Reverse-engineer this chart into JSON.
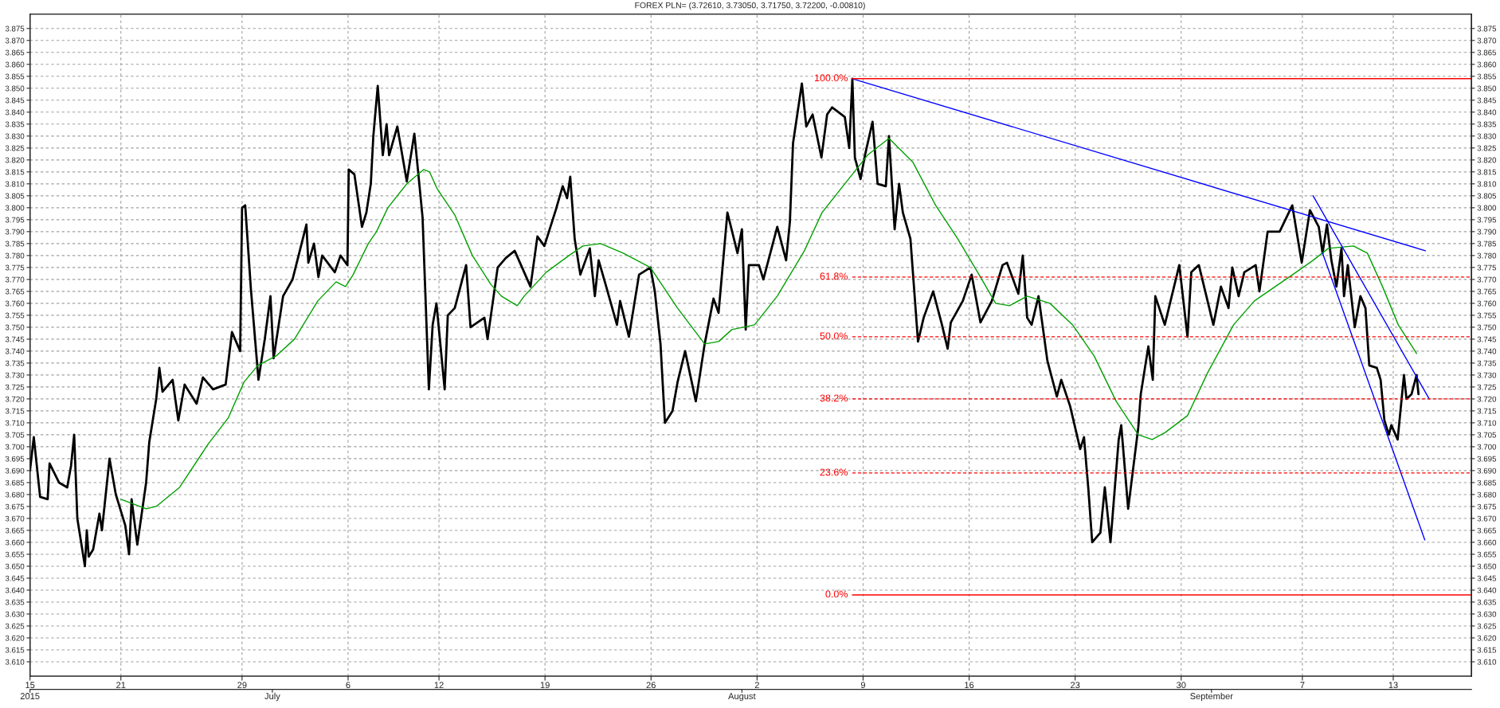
{
  "chart_data": {
    "type": "line",
    "title": "FOREX PLN= (3.72610, 3.73050, 3.71750, 3.72200, -0.00810)",
    "xlim": [
      "2015-06-15T00:00",
      "2015-09-18T04:00"
    ],
    "ylim": [
      3.604,
      3.881
    ],
    "y2lim": [
      3.604,
      3.881
    ],
    "xticks": [
      {
        "value": "2015-06-15",
        "label": "15"
      },
      {
        "value": "2015-06-21",
        "label": "21"
      },
      {
        "value": "2015-06-29",
        "label": "29"
      },
      {
        "value": "2015-07-06",
        "label": "6"
      },
      {
        "value": "2015-07-12",
        "label": "12"
      },
      {
        "value": "2015-07-19",
        "label": "19"
      },
      {
        "value": "2015-07-26",
        "label": "26"
      },
      {
        "value": "2015-08-02",
        "label": "2"
      },
      {
        "value": "2015-08-09",
        "label": "9"
      },
      {
        "value": "2015-08-16",
        "label": "16"
      },
      {
        "value": "2015-08-23",
        "label": "23"
      },
      {
        "value": "2015-08-30",
        "label": "30"
      },
      {
        "value": "2015-09-07",
        "label": "7"
      },
      {
        "value": "2015-09-13",
        "label": "13"
      }
    ],
    "x2lim": [
      "2015-06-15T00:00",
      "2015-09-18T04:00"
    ],
    "x2ticks": [
      {
        "value": "2015-06-15",
        "label": "2015"
      },
      {
        "value": "2015-07-01",
        "label": "July"
      },
      {
        "value": "2015-08-01",
        "label": "August"
      },
      {
        "value": "2015-09-01",
        "label": "September"
      }
    ],
    "yticks": [
      {
        "value": 3.61,
        "label": "3.610"
      },
      3.615,
      {
        "value": 3.62,
        "label": "3.620"
      },
      3.625,
      {
        "value": 3.63,
        "label": "3.630"
      },
      3.635,
      {
        "value": 3.64,
        "label": "3.640"
      },
      3.645,
      {
        "value": 3.65,
        "label": "3.650"
      },
      3.655,
      {
        "value": 3.66,
        "label": "3.660"
      },
      3.665,
      {
        "value": 3.67,
        "label": "3.670"
      },
      3.675,
      {
        "value": 3.68,
        "label": "3.680"
      },
      3.685,
      {
        "value": 3.69,
        "label": "3.690"
      },
      3.695,
      {
        "value": 3.7,
        "label": "3.700"
      },
      3.705,
      {
        "value": 3.71,
        "label": "3.710"
      },
      3.715,
      {
        "value": 3.72,
        "label": "3.720"
      },
      3.725,
      {
        "value": 3.73,
        "label": "3.730"
      },
      3.735,
      {
        "value": 3.74,
        "label": "3.740"
      },
      3.745,
      {
        "value": 3.75,
        "label": "3.750"
      },
      3.755,
      {
        "value": 3.76,
        "label": "3.760"
      },
      3.765,
      {
        "value": 3.77,
        "label": "3.770"
      },
      3.775,
      {
        "value": 3.78,
        "label": "3.780"
      },
      3.785,
      {
        "value": 3.79,
        "label": "3.790"
      },
      3.795,
      {
        "value": 3.8,
        "label": "3.800"
      },
      3.805,
      {
        "value": 3.81,
        "label": "3.810"
      },
      3.815,
      {
        "value": 3.82,
        "label": "3.820"
      },
      3.825,
      {
        "value": 3.83,
        "label": "3.830"
      },
      3.835,
      {
        "value": 3.84,
        "label": "3.840"
      },
      3.845,
      {
        "value": 3.85,
        "label": "3.850"
      },
      3.855,
      {
        "value": 3.86,
        "label": "3.860"
      },
      3.865,
      {
        "value": 3.87,
        "label": "3.870"
      },
      3.875
    ],
    "y2ticks": [
      {
        "value": 3.61,
        "label": "3.610"
      },
      3.615,
      {
        "value": 3.62,
        "label": "3.620"
      },
      3.625,
      {
        "value": 3.63,
        "label": "3.630"
      },
      3.635,
      {
        "value": 3.64,
        "label": "3.640"
      },
      3.645,
      {
        "value": 3.65,
        "label": "3.650"
      },
      3.655,
      {
        "value": 3.66,
        "label": "3.660"
      },
      3.665,
      {
        "value": 3.67,
        "label": "3.670"
      },
      3.675,
      {
        "value": 3.68,
        "label": "3.680"
      },
      3.685,
      {
        "value": 3.69,
        "label": "3.690"
      },
      3.695,
      {
        "value": 3.7,
        "label": "3.700"
      },
      3.705,
      {
        "value": 3.71,
        "label": "3.710"
      },
      3.715,
      {
        "value": 3.72,
        "label": "3.720"
      },
      3.725,
      {
        "value": 3.73,
        "label": "3.730"
      },
      3.735,
      {
        "value": 3.74,
        "label": "3.740"
      },
      3.745,
      {
        "value": 3.75,
        "label": "3.750"
      },
      3.755,
      {
        "value": 3.76,
        "label": "3.760"
      },
      3.765,
      {
        "value": 3.77,
        "label": "3.770"
      },
      3.775,
      {
        "value": 3.78,
        "label": "3.780"
      },
      3.785,
      {
        "value": 3.79,
        "label": "3.790"
      },
      3.795,
      {
        "value": 3.8,
        "label": "3.800"
      },
      3.805,
      {
        "value": 3.81,
        "label": "3.810"
      },
      3.815,
      {
        "value": 3.82,
        "label": "3.820"
      },
      3.825,
      {
        "value": 3.83,
        "label": "3.830"
      },
      3.835,
      {
        "value": 3.84,
        "label": "3.840"
      },
      3.845,
      {
        "value": 3.85,
        "label": "3.850"
      },
      3.855,
      {
        "value": 3.86,
        "label": "3.860"
      },
      3.865,
      {
        "value": 3.87,
        "label": "3.870"
      },
      3.875
    ],
    "grid": true,
    "marker": "none",
    "series": [
      {
        "color": "#000000",
        "line_style": "solid",
        "x": [
          "2015-06-15T00:00",
          "2015-06-15T06:00",
          "2015-06-15T16:00",
          "2015-06-16T04:00",
          "2015-06-16T07:00",
          "2015-06-16T22:00",
          "2015-06-17T11:00",
          "2015-06-17T17:00",
          "2015-06-17T22:00",
          "2015-06-18T03:00",
          "2015-06-18T15:00",
          "2015-06-18T18:00",
          "2015-06-18T21:00",
          "2015-06-19T04:00",
          "2015-06-19T14:00",
          "2015-06-19T18:00",
          "2015-06-20T06:00",
          "2015-06-20T16:00",
          "2015-06-21T07:00",
          "2015-06-21T13:00",
          "2015-06-21T17:00",
          "2015-06-22T02:00",
          "2015-06-22T16:00",
          "2015-06-22T21:00",
          "2015-06-23T08:00",
          "2015-06-23T13:00",
          "2015-06-23T18:00",
          "2015-06-24T10:00",
          "2015-06-24T19:00",
          "2015-06-25T05:00",
          "2015-06-26T00:00",
          "2015-06-26T10:00",
          "2015-06-27T02:00",
          "2015-06-27T22:00",
          "2015-06-28T08:00",
          "2015-06-28T21:00",
          "2015-06-29T00:00",
          "2015-06-29T05:00",
          "2015-06-29T14:00",
          "2015-06-30T02:00",
          "2015-06-30T12:00",
          "2015-06-30T21:00",
          "2015-07-01T02:00",
          "2015-07-01T17:00",
          "2015-07-02T08:00",
          "2015-07-03T06:00",
          "2015-07-03T09:00",
          "2015-07-03T18:00",
          "2015-07-04T01:00",
          "2015-07-04T07:00",
          "2015-07-05T03:00",
          "2015-07-05T12:00",
          "2015-07-05T23:00",
          "2015-07-06T01:00",
          "2015-07-06T10:00",
          "2015-07-06T22:00",
          "2015-07-07T05:00",
          "2015-07-07T12:00",
          "2015-07-07T16:00",
          "2015-07-07T23:00",
          "2015-07-08T07:00",
          "2015-07-08T13:00",
          "2015-07-08T17:00",
          "2015-07-09T06:00",
          "2015-07-09T21:00",
          "2015-07-10T09:00",
          "2015-07-10T15:00",
          "2015-07-10T22:00",
          "2015-07-11T08:00",
          "2015-07-11T14:00",
          "2015-07-11T20:00",
          "2015-07-12T09:00",
          "2015-07-12T14:00",
          "2015-07-13T01:00",
          "2015-07-13T19:00",
          "2015-07-14T02:00",
          "2015-07-15T00:00",
          "2015-07-15T05:00",
          "2015-07-15T21:00",
          "2015-07-16T10:00",
          "2015-07-17T00:00",
          "2015-07-18T01:00",
          "2015-07-18T12:00",
          "2015-07-18T23:00",
          "2015-07-19T17:00",
          "2015-07-20T04:00",
          "2015-07-20T11:00",
          "2015-07-20T16:00",
          "2015-07-20T23:00",
          "2015-07-21T08:00",
          "2015-07-21T23:00",
          "2015-07-22T07:00",
          "2015-07-22T13:00",
          "2015-07-23T01:00",
          "2015-07-23T18:00",
          "2015-07-23T23:00",
          "2015-07-24T13:00",
          "2015-07-25T05:00",
          "2015-07-25T23:00",
          "2015-07-26T06:00",
          "2015-07-26T15:00",
          "2015-07-26T22:00",
          "2015-07-27T10:00",
          "2015-07-27T18:00",
          "2015-07-28T06:00",
          "2015-07-28T23:00",
          "2015-07-29T13:00",
          "2015-07-30T03:00",
          "2015-07-30T11:00",
          "2015-07-31T01:00",
          "2015-07-31T17:00",
          "2015-08-01T00:00",
          "2015-08-01T06:00",
          "2015-08-01T11:00",
          "2015-08-02T03:00",
          "2015-08-02T10:00",
          "2015-08-03T08:00",
          "2015-08-03T22:00",
          "2015-08-04T04:00",
          "2015-08-04T09:00",
          "2015-08-04T23:00",
          "2015-08-05T06:00",
          "2015-08-05T16:00",
          "2015-08-06T06:00",
          "2015-08-06T15:00",
          "2015-08-06T23:00",
          "2015-08-07T19:00",
          "2015-08-08T02:00",
          "2015-08-08T07:00",
          "2015-08-08T11:00",
          "2015-08-08T20:00",
          "2015-08-09T03:00",
          "2015-08-09T15:00",
          "2015-08-09T23:00",
          "2015-08-10T12:00",
          "2015-08-10T17:00",
          "2015-08-11T02:00",
          "2015-08-11T09:00",
          "2015-08-11T15:00",
          "2015-08-12T03:00",
          "2015-08-12T15:00",
          "2015-08-13T00:00",
          "2015-08-13T15:00",
          "2015-08-14T05:00",
          "2015-08-14T14:00",
          "2015-08-14T19:00",
          "2015-08-15T14:00",
          "2015-08-16T04:00",
          "2015-08-16T18:00",
          "2015-08-17T12:00",
          "2015-08-18T05:00",
          "2015-08-18T12:00",
          "2015-08-19T06:00",
          "2015-08-19T13:00",
          "2015-08-19T20:00",
          "2015-08-20T03:00",
          "2015-08-20T14:00",
          "2015-08-21T04:00",
          "2015-08-21T19:00",
          "2015-08-22T02:00",
          "2015-08-22T16:00",
          "2015-08-23T08:00",
          "2015-08-23T14:00",
          "2015-08-23T21:00",
          "2015-08-24T03:00",
          "2015-08-24T16:00",
          "2015-08-24T23:00",
          "2015-08-25T08:00",
          "2015-08-25T21:00",
          "2015-08-26T01:00",
          "2015-08-26T12:00",
          "2015-08-27T04:00",
          "2015-08-27T08:00",
          "2015-08-27T20:00",
          "2015-08-28T03:00",
          "2015-08-28T07:00",
          "2015-08-28T22:00",
          "2015-08-29T21:00",
          "2015-08-30T10:00",
          "2015-08-30T16:00",
          "2015-08-31T04:00",
          "2015-09-01T03:00",
          "2015-09-01T15:00",
          "2015-09-02T03:00",
          "2015-09-02T09:00",
          "2015-09-02T19:00",
          "2015-09-03T04:00",
          "2015-09-03T22:00",
          "2015-09-04T04:00",
          "2015-09-04T17:00",
          "2015-09-05T12:00",
          "2015-09-06T08:00",
          "2015-09-06T23:00",
          "2015-09-07T12:00",
          "2015-09-08T02:00",
          "2015-09-08T08:00",
          "2015-09-08T15:00",
          "2015-09-08T22:00",
          "2015-09-09T06:00",
          "2015-09-09T14:00",
          "2015-09-09T18:00",
          "2015-09-10T00:00",
          "2015-09-10T11:00",
          "2015-09-10T20:00",
          "2015-09-11T04:00",
          "2015-09-11T10:00",
          "2015-09-11T22:00",
          "2015-09-12T04:00",
          "2015-09-12T10:00",
          "2015-09-12T17:00",
          "2015-09-12T21:00",
          "2015-09-13T07:00",
          "2015-09-13T17:00",
          "2015-09-13T21:00",
          "2015-09-14T05:00",
          "2015-09-14T13:00",
          "2015-09-14T16:00"
        ],
        "values": [
          3.69,
          3.704,
          3.679,
          3.678,
          3.693,
          3.685,
          3.683,
          3.692,
          3.705,
          3.67,
          3.65,
          3.665,
          3.654,
          3.657,
          3.672,
          3.665,
          3.695,
          3.68,
          3.667,
          3.655,
          3.678,
          3.659,
          3.685,
          3.702,
          3.72,
          3.733,
          3.723,
          3.728,
          3.711,
          3.726,
          3.718,
          3.729,
          3.724,
          3.726,
          3.748,
          3.74,
          3.8,
          3.801,
          3.766,
          3.728,
          3.745,
          3.763,
          3.737,
          3.763,
          3.77,
          3.793,
          3.777,
          3.785,
          3.771,
          3.78,
          3.773,
          3.78,
          3.776,
          3.816,
          3.814,
          3.792,
          3.798,
          3.81,
          3.83,
          3.851,
          3.822,
          3.835,
          3.822,
          3.834,
          3.811,
          3.831,
          3.815,
          3.796,
          3.724,
          3.751,
          3.76,
          3.724,
          3.755,
          3.758,
          3.776,
          3.75,
          3.754,
          3.745,
          3.775,
          3.779,
          3.782,
          3.767,
          3.788,
          3.784,
          3.799,
          3.809,
          3.804,
          3.813,
          3.787,
          3.772,
          3.783,
          3.763,
          3.778,
          3.767,
          3.751,
          3.761,
          3.746,
          3.772,
          3.775,
          3.765,
          3.743,
          3.71,
          3.715,
          3.727,
          3.74,
          3.719,
          3.743,
          3.762,
          3.756,
          3.798,
          3.781,
          3.791,
          3.749,
          3.776,
          3.776,
          3.77,
          3.792,
          3.778,
          3.794,
          3.827,
          3.852,
          3.834,
          3.839,
          3.821,
          3.839,
          3.842,
          3.838,
          3.825,
          3.854,
          3.821,
          3.812,
          3.822,
          3.836,
          3.81,
          3.809,
          3.83,
          3.791,
          3.81,
          3.798,
          3.787,
          3.744,
          3.754,
          3.765,
          3.751,
          3.741,
          3.752,
          3.761,
          3.772,
          3.752,
          3.761,
          3.776,
          3.777,
          3.764,
          3.78,
          3.754,
          3.751,
          3.763,
          3.736,
          3.721,
          3.728,
          3.717,
          3.699,
          3.704,
          3.682,
          3.66,
          3.664,
          3.683,
          3.66,
          3.703,
          3.709,
          3.674,
          3.708,
          3.722,
          3.742,
          3.728,
          3.763,
          3.751,
          3.776,
          3.746,
          3.773,
          3.776,
          3.751,
          3.767,
          3.758,
          3.775,
          3.763,
          3.773,
          3.776,
          3.765,
          3.79,
          3.79,
          3.801,
          3.777,
          3.799,
          3.792,
          3.781,
          3.793,
          3.778,
          3.767,
          3.783,
          3.763,
          3.776,
          3.75,
          3.763,
          3.758,
          3.734,
          3.733,
          3.728,
          3.711,
          3.705,
          3.709,
          3.703,
          3.73,
          3.72,
          3.722,
          3.73,
          3.722
        ]
      },
      {
        "color": "#00a000",
        "line_style": "solid",
        "x": [
          "2015-06-21T00:00",
          "2015-06-22T16:00",
          "2015-06-23T08:00",
          "2015-06-24T21:00",
          "2015-06-26T18:00",
          "2015-06-28T02:00",
          "2015-06-29T03:00",
          "2015-06-30T01:00",
          "2015-07-01T06:00",
          "2015-07-02T11:00",
          "2015-07-04T00:00",
          "2015-07-05T05:00",
          "2015-07-05T20:00",
          "2015-07-06T08:00",
          "2015-07-07T08:00",
          "2015-07-07T21:00",
          "2015-07-08T15:00",
          "2015-07-09T21:00",
          "2015-07-11T00:00",
          "2015-07-11T09:00",
          "2015-07-11T21:00",
          "2015-07-13T01:00",
          "2015-07-14T05:00",
          "2015-07-15T10:00",
          "2015-07-16T03:00",
          "2015-07-17T04:00",
          "2015-07-17T15:00",
          "2015-07-19T02:00",
          "2015-07-20T14:00",
          "2015-07-21T12:00",
          "2015-07-22T16:00",
          "2015-07-24T04:00",
          "2015-07-25T23:00",
          "2015-07-27T18:00",
          "2015-07-29T13:00",
          "2015-07-30T11:00",
          "2015-07-31T08:00",
          "2015-08-01T20:00",
          "2015-08-03T08:00",
          "2015-08-05T03:00",
          "2015-08-06T07:00",
          "2015-08-07T19:00",
          "2015-08-09T07:00",
          "2015-08-10T17:00",
          "2015-08-12T07:00",
          "2015-08-13T19:00",
          "2015-08-15T06:00",
          "2015-08-16T18:00",
          "2015-08-17T18:00",
          "2015-08-18T16:00",
          "2015-08-19T20:00",
          "2015-08-21T08:00",
          "2015-08-22T20:00",
          "2015-08-24T06:00",
          "2015-08-25T17:00",
          "2015-08-27T04:00",
          "2015-08-28T02:00",
          "2015-08-28T23:00",
          "2015-08-30T10:00",
          "2015-08-31T18:00",
          "2015-09-02T11:00",
          "2015-09-03T20:00",
          "2015-09-05T05:00",
          "2015-09-06T14:00",
          "2015-09-07T17:00",
          "2015-09-08T17:00",
          "2015-09-10T09:00",
          "2015-09-11T07:00",
          "2015-09-12T07:00",
          "2015-09-13T08:00",
          "2015-09-14T13:00"
        ],
        "values": [
          3.678,
          3.674,
          3.675,
          3.683,
          3.701,
          3.712,
          3.727,
          3.734,
          3.738,
          3.745,
          3.761,
          3.769,
          3.767,
          3.772,
          3.785,
          3.79,
          3.8,
          3.81,
          3.816,
          3.815,
          3.808,
          3.797,
          3.78,
          3.768,
          3.763,
          3.759,
          3.763,
          3.773,
          3.78,
          3.784,
          3.785,
          3.781,
          3.775,
          3.758,
          3.743,
          3.744,
          3.749,
          3.751,
          3.763,
          3.782,
          3.798,
          3.81,
          3.822,
          3.829,
          3.819,
          3.801,
          3.787,
          3.771,
          3.76,
          3.759,
          3.763,
          3.76,
          3.751,
          3.738,
          3.719,
          3.705,
          3.703,
          3.706,
          3.713,
          3.731,
          3.751,
          3.761,
          3.767,
          3.773,
          3.778,
          3.783,
          3.784,
          3.781,
          3.767,
          3.751,
          3.739
        ]
      },
      {
        "color": "#0000ff",
        "line_style": "solid",
        "x": [
          "2015-08-08T07:00",
          "2015-09-15T03:00"
        ],
        "values": [
          3.854,
          3.782
        ]
      },
      {
        "color": "#0000ff",
        "line_style": "solid",
        "x": [
          "2015-09-07T17:00",
          "2015-09-15T09:00"
        ],
        "values": [
          3.805,
          3.72
        ]
      },
      {
        "color": "#0000ff",
        "line_style": "solid",
        "x": [
          "2015-09-08T08:00",
          "2015-09-15T02:00"
        ],
        "values": [
          3.781,
          3.661
        ]
      },
      {
        "color": "#ff0000",
        "line_style": "solid",
        "x": [
          "2015-08-08T07:00",
          "2015-09-18T04:00"
        ],
        "values": [
          3.854,
          3.854
        ]
      },
      {
        "color": "#ff0000",
        "line_style": "dashed",
        "x": [
          "2015-08-08T07:00",
          "2015-09-18T04:00"
        ],
        "values": [
          3.771,
          3.771
        ]
      },
      {
        "color": "#ff0000",
        "line_style": "dashed",
        "x": [
          "2015-08-08T07:00",
          "2015-09-18T04:00"
        ],
        "values": [
          3.746,
          3.746
        ]
      },
      {
        "color": "#ff0000",
        "line_style": "dashed",
        "x": [
          "2015-08-08T07:00",
          "2015-09-18T04:00"
        ],
        "values": [
          3.72,
          3.72
        ]
      },
      {
        "color": "#ff0000",
        "line_style": "dashed",
        "x": [
          "2015-08-08T07:00",
          "2015-09-18T04:00"
        ],
        "values": [
          3.689,
          3.689
        ]
      },
      {
        "color": "#ff0000",
        "line_style": "solid",
        "x": [
          "2015-08-08T07:00",
          "2015-09-18T04:00"
        ],
        "values": [
          3.638,
          3.638
        ]
      }
    ],
    "annotations": [
      {
        "text": "100.0%",
        "x": "2015-08-08T07:00",
        "y": 3.854
      },
      {
        "text": "61.8%",
        "x": "2015-08-08T07:00",
        "y": 3.771
      },
      {
        "text": "50.0%",
        "x": "2015-08-08T07:00",
        "y": 3.746
      },
      {
        "text": "38.2%",
        "x": "2015-08-08T07:00",
        "y": 3.72
      },
      {
        "text": "23.6%",
        "x": "2015-08-08T07:00",
        "y": 3.689
      },
      {
        "text": "0.0%",
        "x": "2015-08-08T07:00",
        "y": 3.638
      }
    ]
  }
}
